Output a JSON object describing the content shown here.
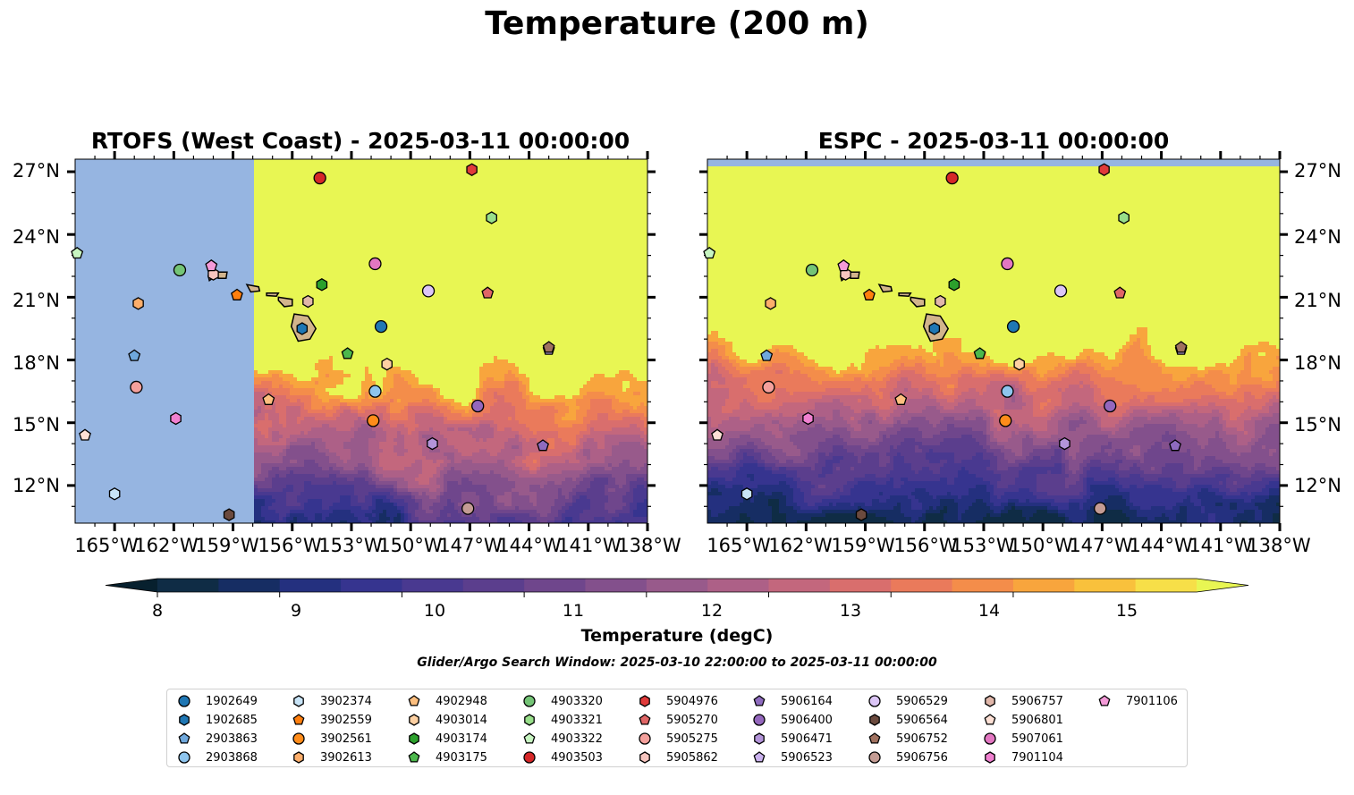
{
  "suptitle": "Temperature (200 m)",
  "panels": [
    {
      "title": "RTOFS (West Coast) - 2025-03-11 00:00:00"
    },
    {
      "title": "ESPC - 2025-03-11 00:00:00"
    }
  ],
  "lat_labels": [
    "27°N",
    "24°N",
    "21°N",
    "18°N",
    "15°N",
    "12°N"
  ],
  "lon_labels": [
    "165°W",
    "162°W",
    "159°W",
    "156°W",
    "153°W",
    "150°W",
    "147°W",
    "144°W",
    "141°W",
    "138°W"
  ],
  "colorbar": {
    "label": "Temperature (degC)",
    "min": 8,
    "max": 15.5,
    "step": 0.5,
    "ticks": [
      "8",
      "9",
      "10",
      "11",
      "12",
      "13",
      "14",
      "15"
    ],
    "colors": [
      "#0f2c45",
      "#162d63",
      "#24307f",
      "#36348f",
      "#493990",
      "#5b3e8d",
      "#6f468c",
      "#83508c",
      "#985a8b",
      "#ad6087",
      "#c3677d",
      "#d96e6d",
      "#ea7a5b",
      "#f48d4a",
      "#f8a53d",
      "#f9c13c",
      "#f7df48"
    ],
    "over_color": "#e8f653"
  },
  "map_colors": {
    "ocean_blank": "#96b5e1",
    "land": "#d2b48c",
    "warm": "#e8f653"
  },
  "search_window": "Glider/Argo Search Window: 2025-03-10 22:00:00 to 2025-03-11 00:00:00",
  "floats": [
    {
      "id": "1902649",
      "marker": "circle",
      "color": "#1f77b4",
      "lon": -151.5,
      "lat": 19.6
    },
    {
      "id": "1902685",
      "marker": "hexagon",
      "color": "#1f77b4",
      "lon": -155.5,
      "lat": 19.5
    },
    {
      "id": "2903863",
      "marker": "pentagon",
      "color": "#6fa8dc",
      "lon": -164.0,
      "lat": 18.2
    },
    {
      "id": "2903868",
      "marker": "circle",
      "color": "#8ec5ee",
      "lon": -151.8,
      "lat": 16.5
    },
    {
      "id": "3902374",
      "marker": "hexagon",
      "color": "#c8e4f7",
      "lon": -165.0,
      "lat": 11.6
    },
    {
      "id": "3902559",
      "marker": "pentagon",
      "color": "#ff7f0e",
      "lon": -158.8,
      "lat": 21.1
    },
    {
      "id": "3902561",
      "marker": "circle",
      "color": "#ff8c1a",
      "lon": -151.9,
      "lat": 15.1
    },
    {
      "id": "3902613",
      "marker": "hexagon",
      "color": "#fdae6b",
      "lon": -163.8,
      "lat": 20.7
    },
    {
      "id": "4902948",
      "marker": "pentagon",
      "color": "#fdbf7f",
      "lon": -157.2,
      "lat": 16.1
    },
    {
      "id": "4903014",
      "marker": "hexagon",
      "color": "#fdd0a2",
      "lon": -151.2,
      "lat": 17.8
    },
    {
      "id": "4903174",
      "marker": "hexagon",
      "color": "#2ca02c",
      "lon": -154.5,
      "lat": 21.6
    },
    {
      "id": "4903175",
      "marker": "pentagon",
      "color": "#4cb84c",
      "lon": -153.2,
      "lat": 18.3
    },
    {
      "id": "4903320",
      "marker": "circle",
      "color": "#74c476",
      "lon": -161.7,
      "lat": 22.3
    },
    {
      "id": "4903321",
      "marker": "hexagon",
      "color": "#98df8a",
      "lon": -145.9,
      "lat": 24.8
    },
    {
      "id": "4903322",
      "marker": "pentagon",
      "color": "#c7f5c1",
      "lon": -166.9,
      "lat": 23.1
    },
    {
      "id": "4903503",
      "marker": "circle",
      "color": "#d62728",
      "lon": -154.6,
      "lat": 26.7
    },
    {
      "id": "5904976",
      "marker": "hexagon",
      "color": "#e03a3a",
      "lon": -146.9,
      "lat": 27.1
    },
    {
      "id": "5905270",
      "marker": "pentagon",
      "color": "#e06666",
      "lon": -146.1,
      "lat": 21.2
    },
    {
      "id": "5905275",
      "marker": "circle",
      "color": "#f4a09c",
      "lon": -163.9,
      "lat": 16.7
    },
    {
      "id": "5905862",
      "marker": "hexagon",
      "color": "#f7c5bf",
      "lon": -160.0,
      "lat": 22.1
    },
    {
      "id": "5906164",
      "marker": "pentagon",
      "color": "#8e6bbf",
      "lon": -143.3,
      "lat": 13.9
    },
    {
      "id": "5906400",
      "marker": "circle",
      "color": "#9467bd",
      "lon": -146.6,
      "lat": 15.8
    },
    {
      "id": "5906471",
      "marker": "hexagon",
      "color": "#b394d9",
      "lon": -148.9,
      "lat": 14.0
    },
    {
      "id": "5906523",
      "marker": "pentagon",
      "color": "#cbb2ef",
      "lon": -143.0,
      "lat": 18.5
    },
    {
      "id": "5906529",
      "marker": "circle",
      "color": "#dcc6f7",
      "lon": -149.1,
      "lat": 21.3
    },
    {
      "id": "5906564",
      "marker": "hexagon",
      "color": "#6b4a3e",
      "lon": -159.2,
      "lat": 10.6
    },
    {
      "id": "5906752",
      "marker": "pentagon",
      "color": "#a0715f",
      "lon": -143.0,
      "lat": 18.6
    },
    {
      "id": "5906756",
      "marker": "circle",
      "color": "#c49c94",
      "lon": -147.1,
      "lat": 10.9
    },
    {
      "id": "5906757",
      "marker": "hexagon",
      "color": "#e1b7aa",
      "lon": -155.2,
      "lat": 20.8
    },
    {
      "id": "5906801",
      "marker": "pentagon",
      "color": "#fde0d5",
      "lon": -166.5,
      "lat": 14.4
    },
    {
      "id": "5907061",
      "marker": "circle",
      "color": "#e377c2",
      "lon": -151.8,
      "lat": 22.6
    },
    {
      "id": "7901104",
      "marker": "hexagon",
      "color": "#f080d0",
      "lon": -161.9,
      "lat": 15.2
    },
    {
      "id": "7901106",
      "marker": "pentagon",
      "color": "#f49ad8",
      "lon": -160.1,
      "lat": 22.5
    }
  ]
}
